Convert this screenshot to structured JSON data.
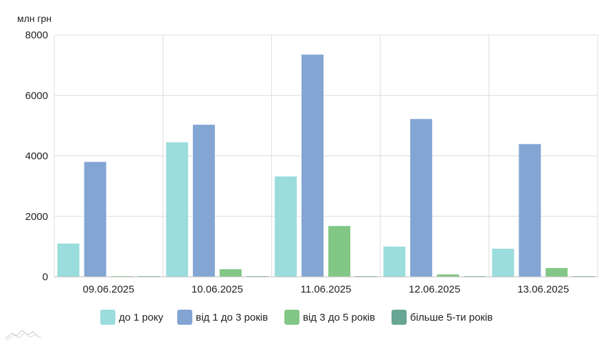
{
  "chart_data": {
    "type": "bar",
    "unit_label": "млн грн",
    "categories": [
      "09.06.2025",
      "10.06.2025",
      "11.06.2025",
      "12.06.2025",
      "13.06.2025"
    ],
    "series": [
      {
        "name": "до 1 року",
        "color": "#9bdcdc",
        "values": [
          1100,
          4450,
          3320,
          1000,
          930
        ]
      },
      {
        "name": "від 1 до 3 років",
        "color": "#82a5d4",
        "values": [
          3800,
          5030,
          7350,
          5220,
          4390
        ]
      },
      {
        "name": "від 3 до 5 років",
        "color": "#82c785",
        "values": [
          10,
          250,
          1680,
          80,
          290
        ]
      },
      {
        "name": "більше 5-ти років",
        "color": "#66a693",
        "values": [
          5,
          5,
          5,
          5,
          5
        ]
      }
    ],
    "ylim": [
      0,
      8000
    ],
    "yticks": [
      0,
      2000,
      4000,
      6000,
      8000
    ],
    "grid": true,
    "legend_position": "bottom"
  }
}
